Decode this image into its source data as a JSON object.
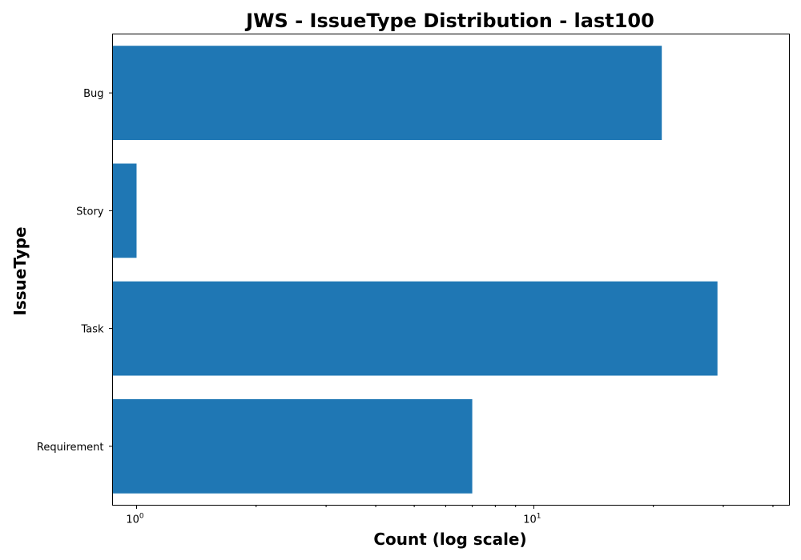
{
  "chart_data": {
    "type": "bar",
    "orientation": "horizontal",
    "title": "JWS - IssueType Distribution - last100",
    "xlabel": "Count (log scale)",
    "ylabel": "IssueType",
    "xscale": "log",
    "xlim": [
      0.87,
      44
    ],
    "categories": [
      "Bug",
      "Story",
      "Task",
      "Requirement"
    ],
    "values": [
      21,
      1,
      29,
      7
    ],
    "x_major_ticks": [
      {
        "value": 1,
        "base": "10",
        "exp": "0"
      },
      {
        "value": 10,
        "base": "10",
        "exp": "1"
      }
    ],
    "x_minor_ticks": [
      2,
      3,
      4,
      5,
      6,
      7,
      8,
      9,
      20,
      30,
      40
    ],
    "color": "#1f77b4"
  }
}
